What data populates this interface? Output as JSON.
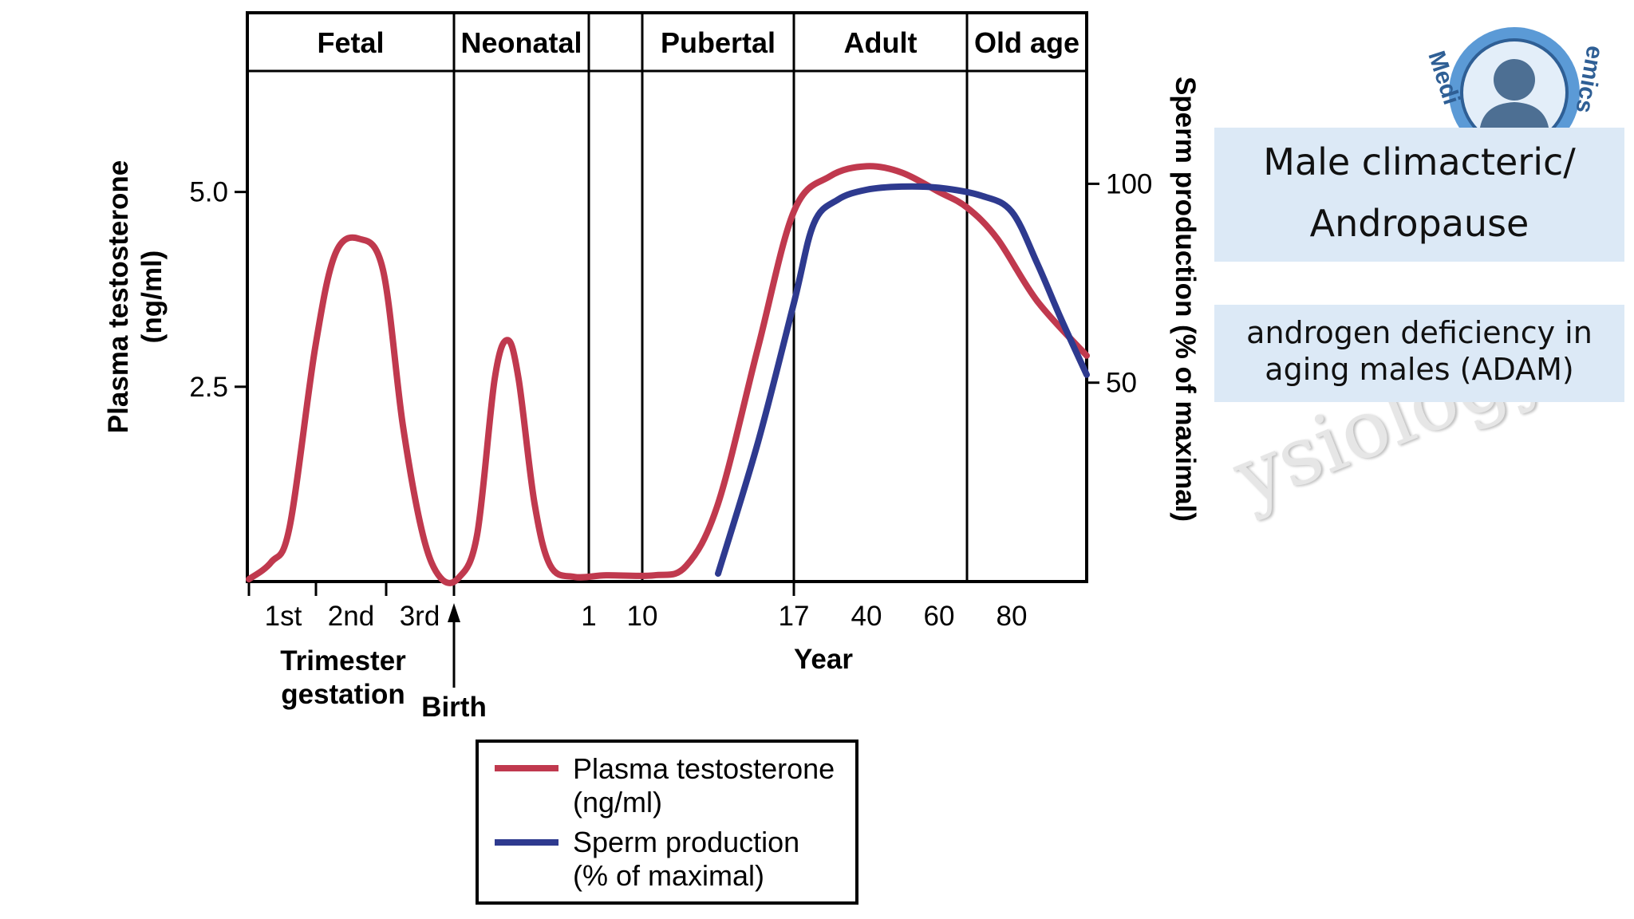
{
  "phases": [
    "Fetal",
    "Neonatal",
    "",
    "Pubertal",
    "Adult",
    "Old age"
  ],
  "left_axis": {
    "title_line1": "Plasma testosterone",
    "title_line2": "(ng/ml)",
    "ticks": [
      "5.0",
      "2.5"
    ]
  },
  "right_axis": {
    "title": "Sperm production (% of maximal)",
    "ticks": [
      "100",
      "50"
    ]
  },
  "x_axis": {
    "trimester_ticks": [
      "1st",
      "2nd",
      "3rd"
    ],
    "year_ticks": [
      "1",
      "10",
      "17",
      "40",
      "60",
      "80"
    ],
    "trimester_label_line1": "Trimester",
    "trimester_label_line2": "gestation",
    "birth_label": "Birth",
    "year_label": "Year"
  },
  "legend": {
    "testosterone_line1": "Plasma testosterone",
    "testosterone_line2": "(ng/ml)",
    "sperm_line1": "Sperm production",
    "sperm_line2": "(% of maximal)"
  },
  "colors": {
    "testosterone": "#c0394e",
    "sperm": "#2e3a8f",
    "box_bg": "#dce9f6"
  },
  "chart_data": {
    "type": "line",
    "title": "",
    "x_categories": [
      "1st",
      "2nd",
      "3rd",
      "Birth",
      "1",
      "10",
      "17",
      "40",
      "60",
      "80"
    ],
    "series": [
      {
        "name": "Plasma testosterone",
        "unit": "ng/ml",
        "axis": "left",
        "ylim": [
          0,
          7.3
        ],
        "points": [
          [
            "1st",
            0.7
          ],
          [
            "2nd",
            4.4
          ],
          [
            "3rd",
            0.9
          ],
          [
            "Birth",
            0.05
          ],
          [
            "Neonatal peak",
            3.1
          ],
          [
            "1",
            0.1
          ],
          [
            "10",
            0.1
          ],
          [
            "17",
            4.8
          ],
          [
            "40",
            5.3
          ],
          [
            "60",
            5.0
          ],
          [
            "80",
            4.0
          ]
        ]
      },
      {
        "name": "Sperm production",
        "unit": "% of maximal",
        "axis": "right",
        "ylim": [
          0,
          143
        ],
        "points": [
          [
            "Puberty onset",
            0
          ],
          [
            "17",
            70
          ],
          [
            "40",
            98
          ],
          [
            "60",
            99
          ],
          [
            "80",
            95
          ]
        ]
      }
    ]
  },
  "info_boxes": {
    "andropause_line1": "Male climacteric/",
    "andropause_line2": "Andropause",
    "adam_line1": "androgen deficiency in",
    "adam_line2": "aging males (ADAM)"
  },
  "watermark": "ysiology",
  "logo_text_left": "Medi",
  "logo_text_right": "emics"
}
